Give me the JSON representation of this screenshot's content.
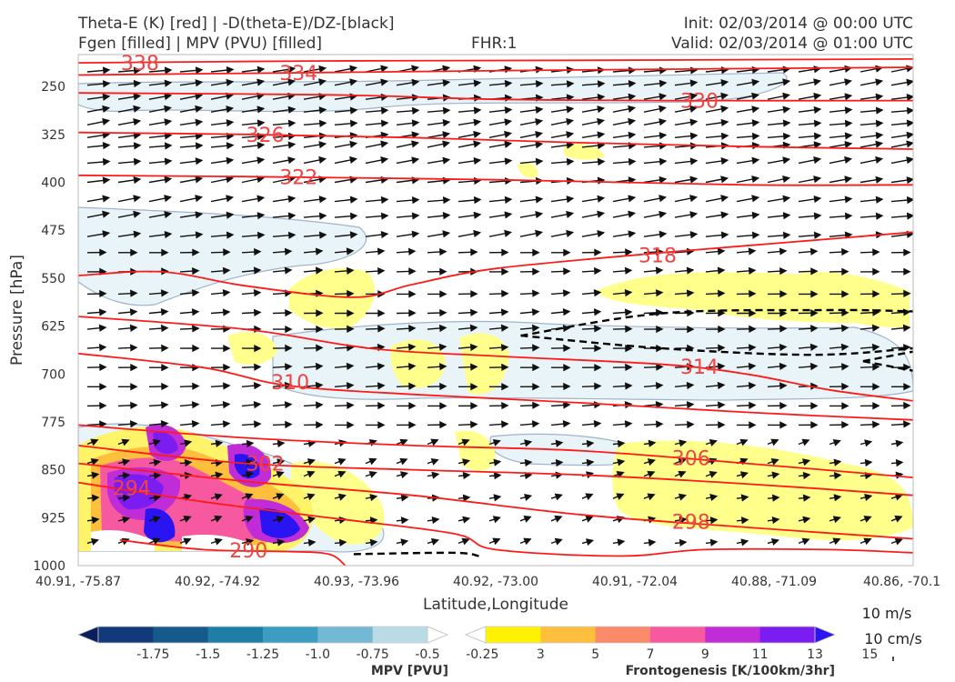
{
  "header": {
    "title_left_1": "Theta-E (K) [red] | -D(theta-E)/DZ-[black]",
    "title_left_2": "Fgen [filled] | MPV (PVU) [filled]",
    "fhr": "FHR:1",
    "init": "Init: 02/03/2014 @ 00:00 UTC",
    "valid": "Valid: 02/03/2014 @ 01:00 UTC"
  },
  "chart_data": {
    "type": "cross-section",
    "xlabel": "Latitude,Longitude",
    "ylabel": "Pressure [hPa]",
    "x_ticks": [
      "40.91, -75.87",
      "40.92, -74.92",
      "40.93, -73.96",
      "40.92, -73.00",
      "40.91, -72.04",
      "40.88, -71.09",
      "40.86, -70.1"
    ],
    "y_ticks": [
      250,
      325,
      400,
      475,
      550,
      625,
      700,
      775,
      850,
      925,
      1000
    ],
    "ylim": [
      1000,
      200
    ],
    "y_inverted": true,
    "grid": false,
    "theta_e_contours": [
      {
        "level": 338,
        "label": "338",
        "points": [
          [
            0.0,
            213
          ],
          [
            0.3,
            210
          ],
          [
            0.6,
            209
          ],
          [
            1.0,
            207
          ]
        ]
      },
      {
        "level": 334,
        "label": "334",
        "points": [
          [
            0.0,
            232
          ],
          [
            0.3,
            228
          ],
          [
            0.6,
            224
          ],
          [
            1.0,
            220
          ]
        ]
      },
      {
        "level": 330,
        "label": "330",
        "points": [
          [
            0.0,
            260
          ],
          [
            0.3,
            263
          ],
          [
            0.5,
            270
          ],
          [
            0.7,
            272
          ],
          [
            1.0,
            272
          ]
        ]
      },
      {
        "level": 326,
        "label": "326",
        "points": [
          [
            0.0,
            322
          ],
          [
            0.2,
            325
          ],
          [
            0.4,
            330
          ],
          [
            0.6,
            338
          ],
          [
            0.8,
            344
          ],
          [
            1.0,
            348
          ]
        ]
      },
      {
        "level": 322,
        "label": "322",
        "points": [
          [
            0.0,
            389
          ],
          [
            0.2,
            391
          ],
          [
            0.5,
            396
          ],
          [
            0.8,
            404
          ],
          [
            1.0,
            404
          ]
        ]
      },
      {
        "level": 318,
        "label": "318",
        "points": [
          [
            0.0,
            546
          ],
          [
            0.1,
            540
          ],
          [
            0.2,
            562
          ],
          [
            0.33,
            580
          ],
          [
            0.4,
            560
          ],
          [
            0.5,
            535
          ],
          [
            0.7,
            510
          ],
          [
            0.85,
            494
          ],
          [
            1.0,
            478
          ]
        ]
      },
      {
        "level": 314,
        "label": "314",
        "points": [
          [
            0.0,
            610
          ],
          [
            0.2,
            630
          ],
          [
            0.35,
            660
          ],
          [
            0.5,
            672
          ],
          [
            0.7,
            685
          ],
          [
            0.8,
            700
          ],
          [
            0.9,
            725
          ],
          [
            1.0,
            742
          ]
        ]
      },
      {
        "level": 310,
        "label": "310",
        "points": [
          [
            0.0,
            668
          ],
          [
            0.15,
            690
          ],
          [
            0.25,
            718
          ],
          [
            0.4,
            732
          ],
          [
            0.6,
            745
          ],
          [
            0.8,
            760
          ],
          [
            1.0,
            772
          ]
        ]
      },
      {
        "level": 306,
        "label": "306",
        "points": [
          [
            0.0,
            780
          ],
          [
            0.2,
            800
          ],
          [
            0.4,
            812
          ],
          [
            0.6,
            820
          ],
          [
            0.8,
            840
          ],
          [
            1.0,
            862
          ]
        ]
      },
      {
        "level": 302,
        "label": "302",
        "points": [
          [
            0.0,
            812
          ],
          [
            0.2,
            840
          ],
          [
            0.4,
            850
          ],
          [
            0.6,
            858
          ],
          [
            0.8,
            872
          ],
          [
            1.0,
            890
          ]
        ]
      },
      {
        "level": 298,
        "label": "298",
        "points": [
          [
            0.0,
            840
          ],
          [
            0.2,
            868
          ],
          [
            0.4,
            890
          ],
          [
            0.6,
            920
          ],
          [
            0.8,
            940
          ],
          [
            1.0,
            958
          ]
        ]
      },
      {
        "level": 294,
        "label": "294",
        "points": [
          [
            0.0,
            870
          ],
          [
            0.15,
            900
          ],
          [
            0.3,
            925
          ],
          [
            0.45,
            950
          ],
          [
            0.5,
            975
          ],
          [
            0.65,
            985
          ],
          [
            0.75,
            975
          ],
          [
            0.9,
            975
          ],
          [
            1.0,
            980
          ]
        ]
      },
      {
        "level": 290,
        "label": "290",
        "points": [
          [
            0.05,
            960
          ],
          [
            0.15,
            975
          ],
          [
            0.25,
            978
          ],
          [
            0.3,
            982
          ],
          [
            0.32,
            1000
          ]
        ]
      }
    ],
    "dthetae_dz_contours": [
      {
        "points": [
          [
            0.53,
            640
          ],
          [
            0.7,
            605
          ],
          [
            0.9,
            600
          ],
          [
            1.0,
            602
          ]
        ]
      },
      {
        "points": [
          [
            0.53,
            640
          ],
          [
            0.7,
            660
          ],
          [
            0.88,
            670
          ],
          [
            1.0,
            660
          ]
        ]
      },
      {
        "points": [
          [
            0.94,
            680
          ],
          [
            1.0,
            665
          ]
        ]
      },
      {
        "points": [
          [
            0.94,
            680
          ],
          [
            1.0,
            695
          ]
        ]
      },
      {
        "points": [
          [
            0.33,
            982
          ],
          [
            0.45,
            980
          ],
          [
            0.48,
            985
          ]
        ]
      }
    ],
    "wind_barb_label": "10 m/s",
    "vertical_velocity_label": "10 cm/s"
  },
  "colorbars": {
    "mpv": {
      "label": "MPV [PVU]",
      "ticks": [
        "-1.75",
        "-1.5",
        "-1.25",
        "-1.0",
        "-0.75",
        "-0.5",
        "-0.25"
      ],
      "colors": [
        "#0b1f5e",
        "#123a7a",
        "#155a8a",
        "#1e7ea6",
        "#3c9dc0",
        "#73b8d4",
        "#b9dbe6",
        "#ffffff"
      ]
    },
    "fgen": {
      "label": "Frontogenesis [K/100km/3hr]",
      "ticks": [
        "3",
        "5",
        "7",
        "9",
        "11",
        "13",
        "15"
      ],
      "colors": [
        "#ffffff",
        "#fff200",
        "#fdbf3c",
        "#fb8a6a",
        "#f759a0",
        "#c02cd6",
        "#7b1cf0",
        "#2a14f2"
      ]
    }
  },
  "colors": {
    "theta_e": "#ff1a1a",
    "dthetae": "#000000",
    "mpv_fill": "#e6f3f6",
    "mpv_outline": "#9fb3cc",
    "fgen_fill": "#ffff88"
  }
}
